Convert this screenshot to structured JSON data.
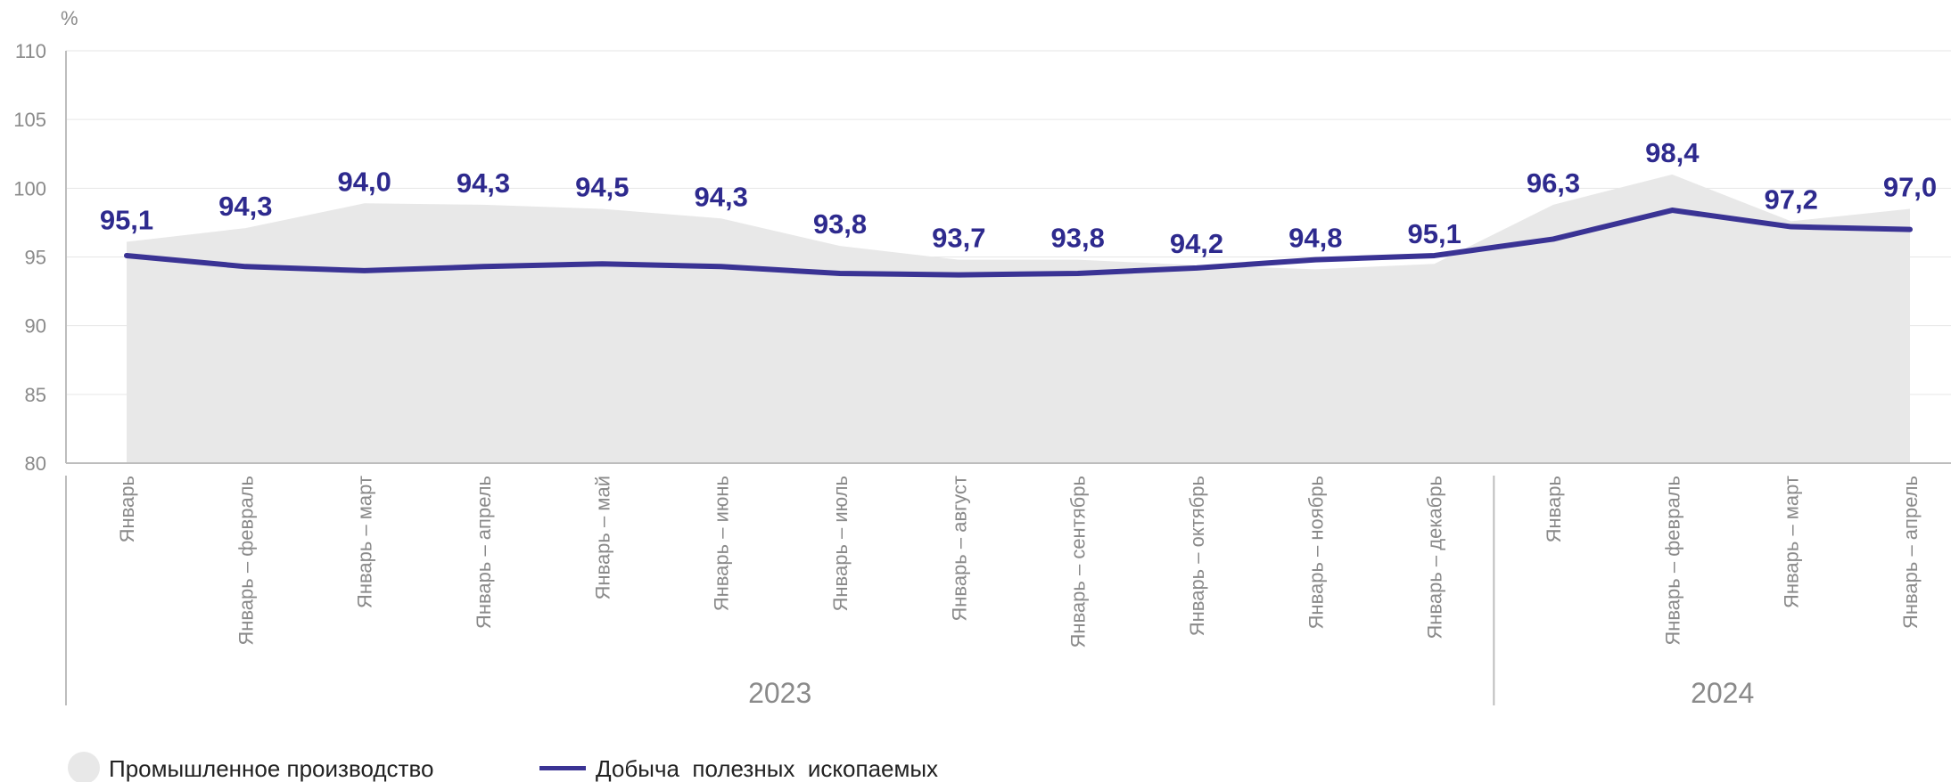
{
  "chart_data": {
    "type": "line",
    "unit_label": "%",
    "ylim": [
      80,
      110
    ],
    "yticks": [
      80,
      85,
      90,
      95,
      100,
      105,
      110
    ],
    "categories": [
      "Январь",
      "Январь – февраль",
      "Январь – март",
      "Январь – апрель",
      "Январь – май",
      "Январь – июнь",
      "Январь – июль",
      "Январь – август",
      "Январь – сентябрь",
      "Январь – октябрь",
      "Январь – ноябрь",
      "Январь – декабрь",
      "Январь",
      "Январь – февраль",
      "Январь – март",
      "Январь – апрель"
    ],
    "year_groups": [
      {
        "label": "2023",
        "start": 0,
        "end": 11
      },
      {
        "label": "2024",
        "start": 12,
        "end": 15
      }
    ],
    "series": [
      {
        "name": "Промышленное производство",
        "type": "area",
        "color": "#e8e8e8",
        "values": [
          96.1,
          97.1,
          98.9,
          98.8,
          98.5,
          97.8,
          95.8,
          94.8,
          94.8,
          94.4,
          94.1,
          94.5,
          98.8,
          101.0,
          97.6,
          98.5
        ]
      },
      {
        "name": "Добыча  полезных  ископаемых",
        "type": "line",
        "color": "#3a3394",
        "values": [
          95.1,
          94.3,
          94.0,
          94.3,
          94.5,
          94.3,
          93.8,
          93.7,
          93.8,
          94.2,
          94.8,
          95.1,
          96.3,
          98.4,
          97.2,
          97.0
        ],
        "labels": [
          "95,1",
          "94,3",
          "94,0",
          "94,3",
          "94,5",
          "94,3",
          "93,8",
          "93,7",
          "93,8",
          "94,2",
          "94,8",
          "95,1",
          "96,3",
          "98,4",
          "97,2",
          "97,0"
        ]
      }
    ],
    "legend_position": "bottom-left",
    "grid": true
  }
}
